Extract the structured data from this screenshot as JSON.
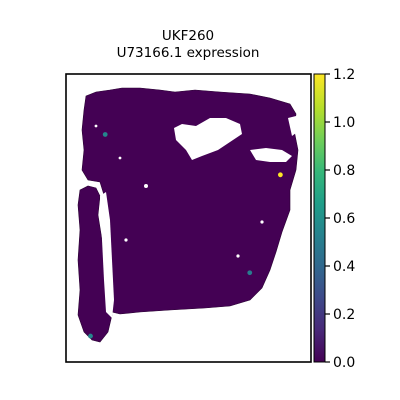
{
  "chart_data": {
    "type": "scatter",
    "plot_kind": "spatial-transcriptomics-spot-map",
    "title_lines": [
      "UKF260",
      "U73166.1 expression"
    ],
    "xlabel": "",
    "ylabel": "",
    "axes_ticks_visible": false,
    "grid": false,
    "legend": "none",
    "colorbar": {
      "colormap": "viridis",
      "position": "right",
      "range": [
        0.0,
        1.2
      ],
      "ticks": [
        "0.0",
        "0.2",
        "0.4",
        "0.6",
        "0.8",
        "1.0",
        "1.2"
      ],
      "tick_values": [
        0.0,
        0.2,
        0.4,
        0.6,
        0.8,
        1.0,
        1.2
      ],
      "colors": [
        "#440154",
        "#482878",
        "#3e4989",
        "#31688e",
        "#26828e",
        "#1f9e89",
        "#35b779",
        "#6ece58",
        "#b5de2b",
        "#fde725"
      ]
    },
    "background_value": 0.0,
    "background_color": "#440154",
    "highlighted_spots": [
      {
        "x": 0.16,
        "y": 0.79,
        "value": 0.55
      },
      {
        "x": 0.875,
        "y": 0.65,
        "value": 1.2
      },
      {
        "x": 0.75,
        "y": 0.31,
        "value": 0.5
      },
      {
        "x": 0.1,
        "y": 0.09,
        "value": 0.55
      }
    ],
    "coordinate_note": "x and y are tissue-space fractions of the plot frame (0 = left/bottom, 1 = right/top)"
  }
}
